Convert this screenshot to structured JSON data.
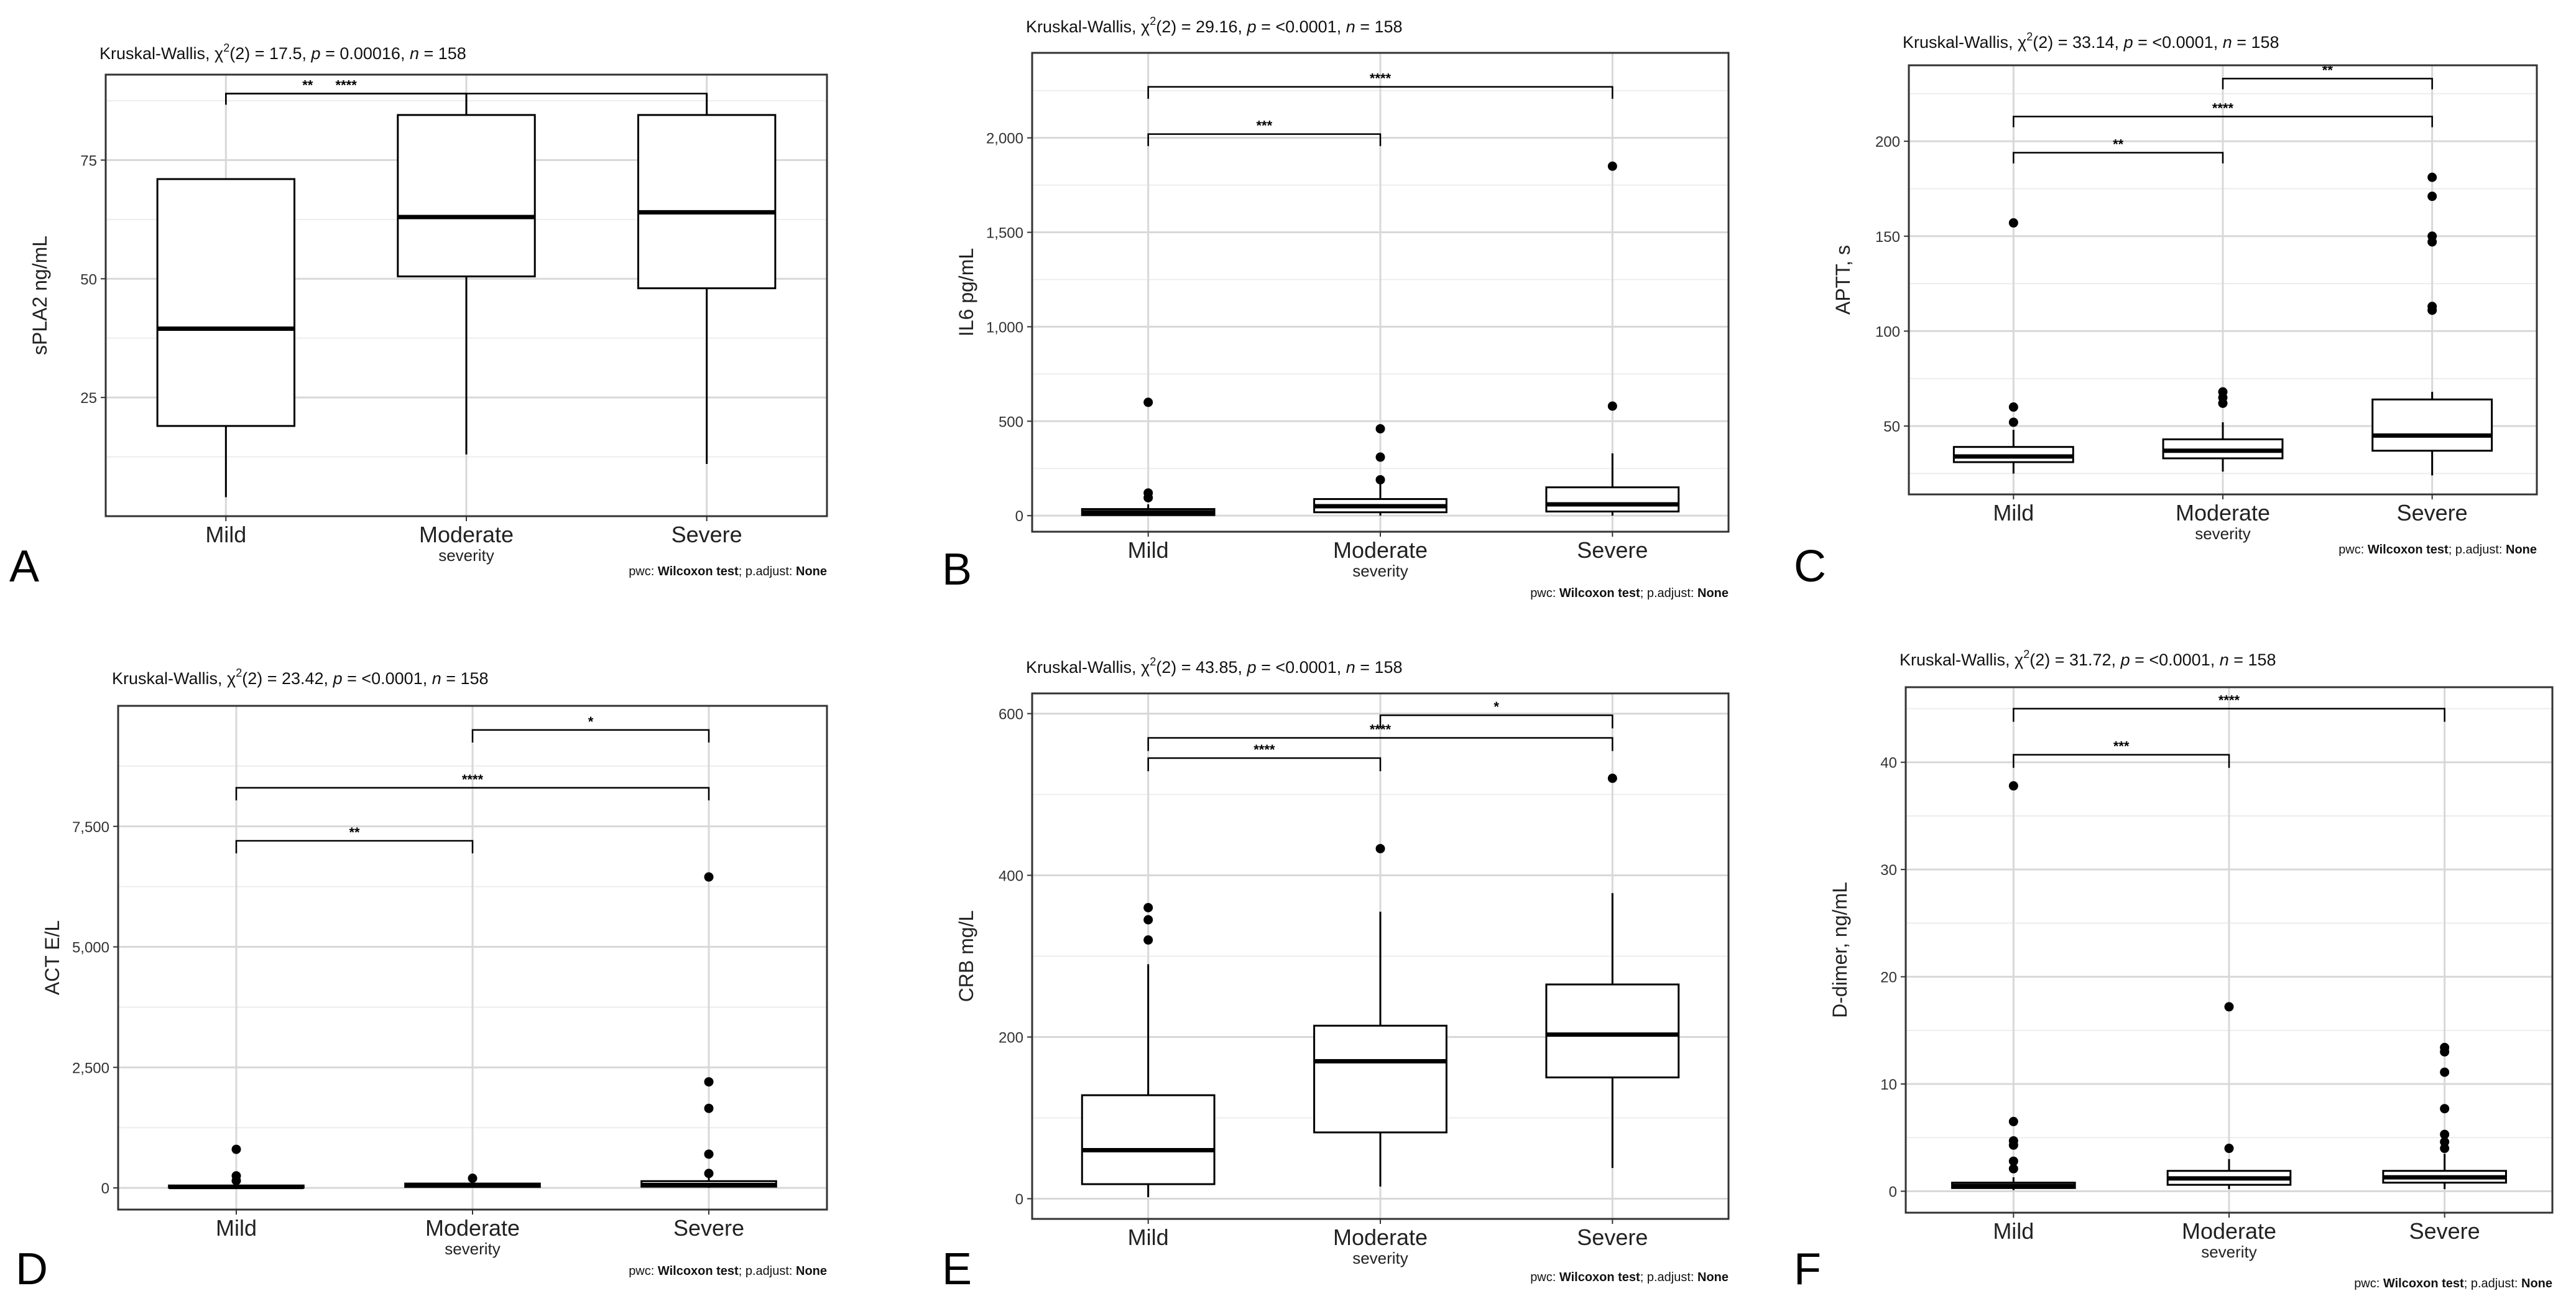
{
  "figure": {
    "pwc_prefix": "pwc: ",
    "pwc_method": "Wilcoxon test",
    "pwc_mid": "; p.adjust: ",
    "pwc_adjust": "None",
    "xlabel": "severity"
  },
  "colors": {
    "box_stroke": "#000000",
    "box_fill": "#ffffff",
    "grid_major": "#d8d8d8",
    "grid_minor": "#ededed",
    "panel_border": "#333333"
  },
  "chart_data": [
    {
      "panel_label": "A",
      "type": "box",
      "title": "Kruskal-Wallis, χ²(2) = 17.5, p = 0.00016, n = 158",
      "title_parts": {
        "stat": "Kruskal-Wallis, χ",
        "sup": "2",
        "mid": "(2) = 17.5, ",
        "p_label": "p",
        "p_value": " = 0.00016, ",
        "n_label": "n",
        "n_value": " = 158"
      },
      "ylabel": "sPLA2 ng/mL",
      "xlabel": "severity",
      "categories": [
        "Mild",
        "Moderate",
        "Severe"
      ],
      "ylim": [
        0,
        93
      ],
      "yticks": [
        25,
        50,
        75
      ],
      "ytick_labels": [
        "25",
        "50",
        "75"
      ],
      "boxes": [
        {
          "min": 4,
          "q1": 19,
          "median": 39.5,
          "q3": 71,
          "max": 71,
          "outliers": []
        },
        {
          "min": 13,
          "q1": 50.5,
          "median": 63,
          "q3": 84.5,
          "max": 89,
          "outliers": []
        },
        {
          "min": 11,
          "q1": 48,
          "median": 64,
          "q3": 84.5,
          "max": 89,
          "outliers": []
        }
      ],
      "brackets": [
        {
          "from": 0,
          "to": 2,
          "y": 89,
          "label": "**"
        },
        {
          "from": 0,
          "to": 1,
          "y": 89,
          "label": "****"
        }
      ]
    },
    {
      "panel_label": "B",
      "type": "box",
      "title": "Kruskal-Wallis, χ²(2) = 29.16, p = <0.0001, n = 158",
      "title_parts": {
        "stat": "Kruskal-Wallis, χ",
        "sup": "2",
        "mid": "(2) = 29.16, ",
        "p_label": "p",
        "p_value": " = <0.0001, ",
        "n_label": "n",
        "n_value": " = 158"
      },
      "ylabel": "IL6   pg/mL",
      "xlabel": "severity",
      "categories": [
        "Mild",
        "Moderate",
        "Severe"
      ],
      "ylim": [
        -85,
        2450
      ],
      "yticks": [
        0,
        500,
        1000,
        1500,
        2000
      ],
      "ytick_labels": [
        "0",
        "500",
        "1,000",
        "1,500",
        "2,000"
      ],
      "boxes": [
        {
          "min": 0,
          "q1": 3,
          "median": 18,
          "q3": 35,
          "max": 60,
          "outliers": [
            95,
            120,
            600
          ]
        },
        {
          "min": 0,
          "q1": 18,
          "median": 50,
          "q3": 88,
          "max": 170,
          "outliers": [
            190,
            310,
            460
          ]
        },
        {
          "min": 0,
          "q1": 22,
          "median": 60,
          "q3": 150,
          "max": 330,
          "outliers": [
            580,
            1850
          ]
        }
      ],
      "brackets": [
        {
          "from": 0,
          "to": 1,
          "y": 2020,
          "label": "***"
        },
        {
          "from": 0,
          "to": 2,
          "y": 2270,
          "label": "****"
        }
      ]
    },
    {
      "panel_label": "C",
      "type": "box",
      "title": "Kruskal-Wallis, χ²(2) = 33.14, p = <0.0001, n = 158",
      "title_parts": {
        "stat": "Kruskal-Wallis, χ",
        "sup": "2",
        "mid": "(2) = 33.14, ",
        "p_label": "p",
        "p_value": " = <0.0001, ",
        "n_label": "n",
        "n_value": " = 158"
      },
      "ylabel": "APTT, s",
      "xlabel": "severity",
      "categories": [
        "Mild",
        "Moderate",
        "Severe"
      ],
      "ylim": [
        14,
        240
      ],
      "yticks": [
        50,
        100,
        150,
        200
      ],
      "ytick_labels": [
        "50",
        "100",
        "150",
        "200"
      ],
      "boxes": [
        {
          "min": 25,
          "q1": 31,
          "median": 34,
          "q3": 39,
          "max": 48,
          "outliers": [
            52,
            60,
            157
          ]
        },
        {
          "min": 26,
          "q1": 33,
          "median": 37,
          "q3": 43,
          "max": 52,
          "outliers": [
            62,
            65,
            68
          ]
        },
        {
          "min": 24,
          "q1": 37,
          "median": 45,
          "q3": 64,
          "max": 68,
          "outliers": [
            111,
            113,
            147,
            150,
            171,
            181
          ]
        }
      ],
      "brackets": [
        {
          "from": 0,
          "to": 1,
          "y": 194,
          "label": "**"
        },
        {
          "from": 0,
          "to": 2,
          "y": 213,
          "label": "****"
        },
        {
          "from": 1,
          "to": 2,
          "y": 233,
          "label": "**"
        }
      ]
    },
    {
      "panel_label": "D",
      "type": "box",
      "title": "Kruskal-Wallis, χ²(2) = 23.42, p = <0.0001, n = 158",
      "title_parts": {
        "stat": "Kruskal-Wallis, χ",
        "sup": "2",
        "mid": "(2) = 23.42, ",
        "p_label": "p",
        "p_value": " = <0.0001, ",
        "n_label": "n",
        "n_value": " = 158"
      },
      "ylabel": "ACT E/L",
      "xlabel": "severity",
      "categories": [
        "Mild",
        "Moderate",
        "Severe"
      ],
      "ylim": [
        -450,
        10000
      ],
      "yticks": [
        0,
        2500,
        5000,
        7500
      ],
      "ytick_labels": [
        "0",
        "2,500",
        "5,000",
        "7,500"
      ],
      "boxes": [
        {
          "min": 0,
          "q1": 5,
          "median": 20,
          "q3": 50,
          "max": 110,
          "outliers": [
            150,
            250,
            800
          ]
        },
        {
          "min": 0,
          "q1": 20,
          "median": 50,
          "q3": 90,
          "max": 150,
          "outliers": [
            200
          ]
        },
        {
          "min": 0,
          "q1": 25,
          "median": 60,
          "q3": 140,
          "max": 250,
          "outliers": [
            300,
            700,
            1650,
            2200,
            6450
          ]
        }
      ],
      "brackets": [
        {
          "from": 0,
          "to": 1,
          "y": 7200,
          "label": "**"
        },
        {
          "from": 0,
          "to": 2,
          "y": 8300,
          "label": "****"
        },
        {
          "from": 1,
          "to": 2,
          "y": 9500,
          "label": "*"
        }
      ]
    },
    {
      "panel_label": "E",
      "type": "box",
      "title": "Kruskal-Wallis, χ²(2) = 43.85, p = <0.0001, n = 158",
      "title_parts": {
        "stat": "Kruskal-Wallis, χ",
        "sup": "2",
        "mid": "(2) = 43.85, ",
        "p_label": "p",
        "p_value": " = <0.0001, ",
        "n_label": "n",
        "n_value": " = 158"
      },
      "ylabel": "CRB   mg/L",
      "xlabel": "severity",
      "categories": [
        "Mild",
        "Moderate",
        "Severe"
      ],
      "ylim": [
        -25,
        625
      ],
      "yticks": [
        0,
        200,
        400,
        600
      ],
      "ytick_labels": [
        "0",
        "200",
        "400",
        "600"
      ],
      "boxes": [
        {
          "min": 2,
          "q1": 18,
          "median": 60,
          "q3": 128,
          "max": 290,
          "outliers": [
            320,
            345,
            360
          ]
        },
        {
          "min": 15,
          "q1": 82,
          "median": 170,
          "q3": 214,
          "max": 355,
          "outliers": [
            433
          ]
        },
        {
          "min": 38,
          "q1": 150,
          "median": 203,
          "q3": 265,
          "max": 378,
          "outliers": [
            520
          ]
        }
      ],
      "brackets": [
        {
          "from": 0,
          "to": 1,
          "y": 545,
          "label": "****"
        },
        {
          "from": 0,
          "to": 2,
          "y": 570,
          "label": "****"
        },
        {
          "from": 1,
          "to": 2,
          "y": 598,
          "label": "*"
        }
      ]
    },
    {
      "panel_label": "F",
      "type": "box",
      "title": "Kruskal-Wallis, χ²(2) = 31.72, p = <0.0001, n = 158",
      "title_parts": {
        "stat": "Kruskal-Wallis, χ",
        "sup": "2",
        "mid": "(2) = 31.72, ",
        "p_label": "p",
        "p_value": " = <0.0001, ",
        "n_label": "n",
        "n_value": " = 158"
      },
      "ylabel": "D-dimer, ng/mL",
      "xlabel": "severity",
      "categories": [
        "Mild",
        "Moderate",
        "Severe"
      ],
      "ylim": [
        -2,
        47
      ],
      "yticks": [
        0,
        10,
        20,
        30,
        40
      ],
      "ytick_labels": [
        "0",
        "10",
        "20",
        "30",
        "40"
      ],
      "boxes": [
        {
          "min": 0.1,
          "q1": 0.3,
          "median": 0.5,
          "q3": 0.8,
          "max": 1.3,
          "outliers": [
            2.1,
            2.8,
            4.3,
            4.7,
            6.5,
            37.8
          ]
        },
        {
          "min": 0.2,
          "q1": 0.6,
          "median": 1.2,
          "q3": 1.9,
          "max": 3.0,
          "outliers": [
            4.0,
            17.2
          ]
        },
        {
          "min": 0.2,
          "q1": 0.8,
          "median": 1.3,
          "q3": 1.9,
          "max": 3.5,
          "outliers": [
            4.0,
            4.6,
            5.3,
            7.7,
            11.1,
            13.0,
            13.4
          ]
        }
      ],
      "brackets": [
        {
          "from": 0,
          "to": 1,
          "y": 40.7,
          "label": "***"
        },
        {
          "from": 0,
          "to": 2,
          "y": 45,
          "label": "****"
        }
      ]
    }
  ]
}
